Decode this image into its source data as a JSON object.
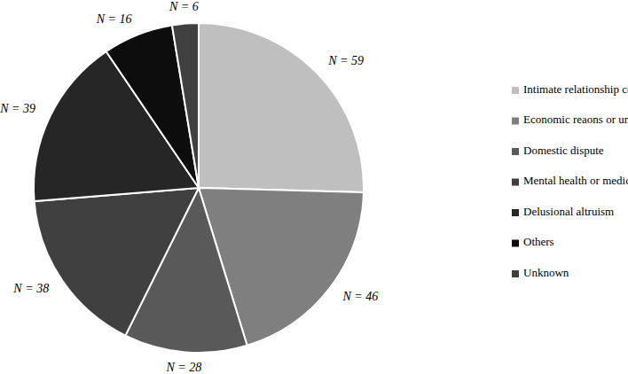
{
  "chart_data": {
    "type": "pie",
    "categories": [
      "Intimate relationship conflicts",
      "Economic reaons or unemployment",
      "Domestic dispute",
      "Mental health or medical reasons",
      "Delusional altruism",
      "Others",
      "Unknown"
    ],
    "values": [
      59,
      46,
      28,
      38,
      39,
      16,
      6
    ],
    "value_labels": [
      "N = 59",
      "N = 46",
      "N = 28",
      "N = 38",
      "N = 39",
      "N = 16",
      "N = 6"
    ],
    "colors": [
      "#bfbfbf",
      "#7f7f7f",
      "#595959",
      "#404040",
      "#262626",
      "#0d0d0d",
      "#404040"
    ],
    "data_labels": true,
    "legend": "right"
  }
}
